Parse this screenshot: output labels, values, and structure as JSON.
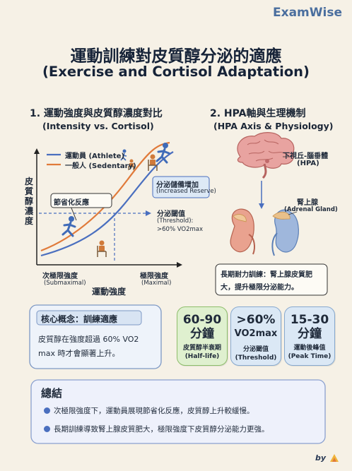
{
  "brand": "ExamWise",
  "title": {
    "zh": "運動訓練對皮質醇分泌的適應",
    "en": "(Exercise and Cortisol Adaptation)"
  },
  "section1": {
    "heading": "1. 運動強度與皮質醇濃度對比",
    "subheading": "(Intensity vs. Cortisol)",
    "legend_athlete": "運動員 (Athlete)",
    "legend_sedentary": "一般人 (Sedentary)",
    "ylabel": "皮質醇濃度",
    "xlabel": "運動強度",
    "economy_label": "節省化反應",
    "reserve_zh": "分泌儲備增加",
    "reserve_en": "(Increased Reserve)",
    "threshold_zh": "分泌閾值",
    "threshold_en1": "(Threshold):",
    "threshold_en2": ">60% VO2max",
    "x_left_zh": "次極限強度",
    "x_left_en": "(Submaximal)",
    "x_right_zh": "極限強度",
    "x_right_en": "(Maximal)"
  },
  "section2": {
    "heading": "2. HPA軸與生理機制",
    "subheading": "(HPA Axis & Physiology)",
    "hpa_zh": "下視丘-腦垂體",
    "hpa_en": "(HPA)",
    "adrenal_zh": "腎上腺",
    "adrenal_en": "(Adrenal Gland)",
    "note_line1": "長期耐力訓練：腎上腺皮質肥",
    "note_line2": "大，提升極限分泌能力。"
  },
  "concept": {
    "title": "核心概念：訓練適應",
    "line1": "皮質醇在強度超過 60% VO2",
    "line2": "max 時才會顯著上升。"
  },
  "cards": [
    {
      "big1": "60-90",
      "big2": "分鐘",
      "label_zh": "皮質醇半衰期",
      "label_en": "(Half-life)",
      "color": "#dff0cf",
      "border": "#8dbd6a"
    },
    {
      "big1": ">60%",
      "big2": "VO2max",
      "label_zh": "分泌閾值",
      "label_en": "(Threshold)",
      "color": "#dbe8f5",
      "border": "#87a9cf"
    },
    {
      "big1": "15-30",
      "big2": "分鐘",
      "label_zh": "運動後峰值",
      "label_en": "(Peak Time)",
      "color": "#dbe8f5",
      "border": "#87a9cf"
    }
  ],
  "summary": {
    "title": "總結",
    "item1": "次極限強度下，運動員展現節省化反應，皮質醇上升較緩慢。",
    "item2": "長期訓練導致腎上腺皮質肥大，極限強度下皮質醇分泌能力更強。"
  },
  "footer": "by"
}
